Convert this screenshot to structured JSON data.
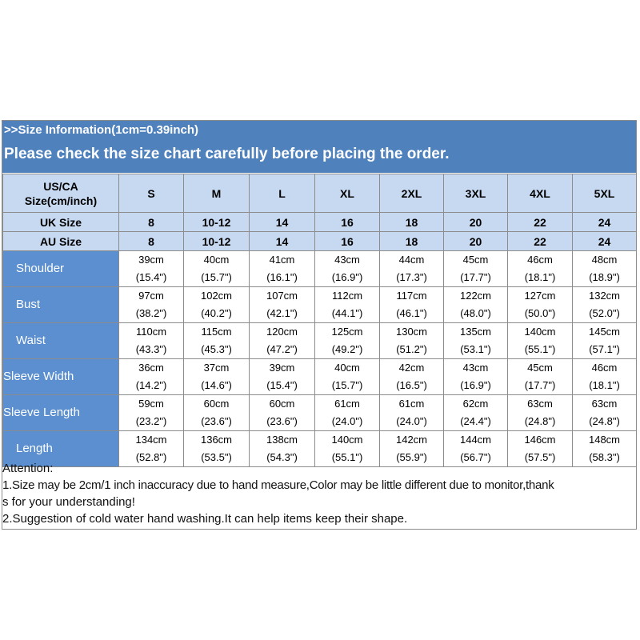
{
  "banner": {
    "line1": ">>Size Information(1cm=0.39inch)",
    "line2": "Please check the size chart carefully before placing the order."
  },
  "table": {
    "corner_line1": "US/CA",
    "corner_line2": "Size(cm/inch)",
    "sizes": [
      "S",
      "M",
      "L",
      "XL",
      "2XL",
      "3XL",
      "4XL",
      "5XL"
    ],
    "uk": {
      "label": "UK Size",
      "values": [
        "8",
        "10-12",
        "14",
        "16",
        "18",
        "20",
        "22",
        "24"
      ]
    },
    "au": {
      "label": "AU Size",
      "values": [
        "8",
        "10-12",
        "14",
        "16",
        "18",
        "20",
        "22",
        "24"
      ]
    },
    "measurements": [
      {
        "label": "Shoulder",
        "cm": [
          "39cm",
          "40cm",
          "41cm",
          "43cm",
          "44cm",
          "45cm",
          "46cm",
          "48cm"
        ],
        "inch": [
          "(15.4\")",
          "(15.7\")",
          "(16.1\")",
          "(16.9\")",
          "(17.3\")",
          "(17.7\")",
          "(18.1\")",
          "(18.9\")"
        ]
      },
      {
        "label": "Bust",
        "cm": [
          "97cm",
          "102cm",
          "107cm",
          "112cm",
          "117cm",
          "122cm",
          "127cm",
          "132cm"
        ],
        "inch": [
          "(38.2\")",
          "(40.2\")",
          "(42.1\")",
          "(44.1\")",
          "(46.1\")",
          "(48.0\")",
          "(50.0\")",
          "(52.0\")"
        ]
      },
      {
        "label": "Waist",
        "cm": [
          "110cm",
          "115cm",
          "120cm",
          "125cm",
          "130cm",
          "135cm",
          "140cm",
          "145cm"
        ],
        "inch": [
          "(43.3\")",
          "(45.3\")",
          "(47.2\")",
          "(49.2\")",
          "(51.2\")",
          "(53.1\")",
          "(55.1\")",
          "(57.1\")"
        ]
      },
      {
        "label": "Sleeve Width",
        "cm": [
          "36cm",
          "37cm",
          "39cm",
          "40cm",
          "42cm",
          "43cm",
          "45cm",
          "46cm"
        ],
        "inch": [
          "(14.2\")",
          "(14.6\")",
          "(15.4\")",
          "(15.7\")",
          "(16.5\")",
          "(16.9\")",
          "(17.7\")",
          "(18.1\")"
        ]
      },
      {
        "label": "Sleeve Length",
        "cm": [
          "59cm",
          "60cm",
          "60cm",
          "61cm",
          "61cm",
          "62cm",
          "63cm",
          "63cm"
        ],
        "inch": [
          "(23.2\")",
          "(23.6\")",
          "(23.6\")",
          "(24.0\")",
          "(24.0\")",
          "(24.4\")",
          "(24.8\")",
          "(24.8\")"
        ]
      },
      {
        "label": "Length",
        "cm": [
          "134cm",
          "136cm",
          "138cm",
          "140cm",
          "142cm",
          "144cm",
          "146cm",
          "148cm"
        ],
        "inch": [
          "(52.8\")",
          "(53.5\")",
          "(54.3\")",
          "(55.1\")",
          "(55.9\")",
          "(56.7\")",
          "(57.5\")",
          "(58.3\")"
        ]
      }
    ]
  },
  "notes": {
    "heading": "Attention:",
    "line1a": "1.Size may be 2cm/1 inch inaccuracy due to hand measure,Color may be little different due to monitor,thank",
    "line1b": "s for your understanding!",
    "line2": "2.Suggestion of cold water hand washing.It can help items keep their shape."
  },
  "colors": {
    "banner": "#4f81bd",
    "header_cells": "#c6d9f1",
    "row_label_cells": "#5b8fcf",
    "grid": "#8c8c8c"
  }
}
